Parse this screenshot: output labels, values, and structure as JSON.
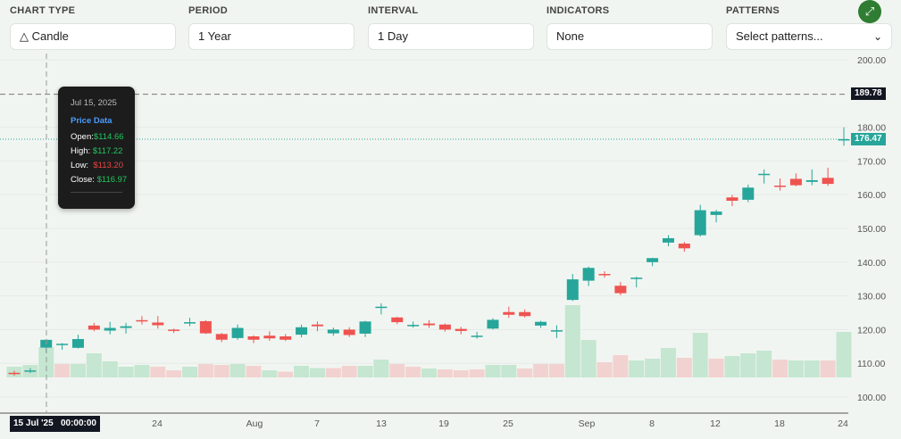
{
  "controls": [
    {
      "label": "CHART TYPE",
      "value": "Candle",
      "icon": "candle-icon"
    },
    {
      "label": "PERIOD",
      "value": "1 Year"
    },
    {
      "label": "INTERVAL",
      "value": "1 Day"
    },
    {
      "label": "INDICATORS",
      "value": "None"
    },
    {
      "label": "PATTERNS",
      "placeholder": "Select patterns...",
      "icon": "chevron-down-icon"
    }
  ],
  "fullscreen_icon": "expand-icon",
  "tooltip": {
    "date": "Jul 15, 2025",
    "section": "Price Data",
    "open_label": "Open:",
    "open": "$114.66",
    "high_label": "High:",
    "high": "$117.22",
    "low_label": "Low:",
    "low": "$113.20",
    "close_label": "Close:",
    "close": "$116.97"
  },
  "crosshair": {
    "price": "189.78",
    "time": "15 Jul '25   00:00:00"
  },
  "last_price": "176.47",
  "colors": {
    "up": "#26a69a",
    "down": "#ef5350",
    "vol_up": "#c5e6d1",
    "vol_down": "#f2d2d0",
    "accent": "#2e7d32"
  },
  "chart_data": {
    "type": "candlestick",
    "ylim": [
      95,
      205
    ],
    "y_ticks": [
      "200.00",
      "180.00",
      "170.00",
      "160.00",
      "150.00",
      "140.00",
      "130.00",
      "120.00",
      "110.00",
      "100.00"
    ],
    "x_ticks": [
      "24",
      "Aug",
      "7",
      "13",
      "19",
      "25",
      "Sep",
      "8",
      "12",
      "18",
      "24"
    ],
    "ohlc": [
      [
        107.2,
        107.8,
        106.3,
        106.8
      ],
      [
        107.6,
        108.6,
        107.1,
        107.9
      ],
      [
        114.66,
        117.22,
        113.2,
        116.97
      ],
      [
        115.5,
        116,
        114,
        115.8
      ],
      [
        114.6,
        118.5,
        114.4,
        117.2
      ],
      [
        121.2,
        122,
        119.5,
        120
      ],
      [
        119.7,
        122.3,
        118.6,
        120.5
      ],
      [
        120.5,
        122,
        118.8,
        121
      ],
      [
        122.8,
        124,
        121.5,
        122.6
      ],
      [
        122.1,
        124,
        120.3,
        121.3
      ],
      [
        120,
        120.3,
        119,
        119.6
      ],
      [
        122,
        123.5,
        121,
        122.2
      ],
      [
        122.5,
        122.8,
        118.7,
        118.9
      ],
      [
        118.7,
        119,
        116.3,
        117
      ],
      [
        117.5,
        121.5,
        117,
        120.5
      ],
      [
        118,
        118.3,
        116,
        117
      ],
      [
        118.2,
        119.5,
        116.7,
        117.4
      ],
      [
        118,
        118.7,
        116.6,
        117
      ],
      [
        118.5,
        121.5,
        117.7,
        120.7
      ],
      [
        121.5,
        122.4,
        119.5,
        121
      ],
      [
        118.9,
        120.6,
        118.2,
        120
      ],
      [
        120,
        120.7,
        117.8,
        118.4
      ],
      [
        118.8,
        122.6,
        117.8,
        122.4
      ],
      [
        126.5,
        127.8,
        124.5,
        126.8
      ],
      [
        123.6,
        123.8,
        121.6,
        122.2
      ],
      [
        121,
        122.4,
        120.6,
        121.4
      ],
      [
        121.8,
        122.8,
        120.5,
        121.3
      ],
      [
        121.5,
        121.8,
        119.4,
        120
      ],
      [
        120.2,
        120.8,
        118.6,
        119.6
      ],
      [
        117.9,
        119.3,
        117.3,
        118.2
      ],
      [
        120.3,
        123.4,
        120,
        122.9
      ],
      [
        125.2,
        126.8,
        123.5,
        124.4
      ],
      [
        125.2,
        126,
        123.6,
        124
      ],
      [
        121.2,
        122.6,
        120.5,
        122.3
      ],
      [
        119.7,
        121.3,
        117.5,
        119.8
      ],
      [
        128.8,
        136.5,
        128.5,
        134.9
      ],
      [
        134.5,
        138.7,
        132.9,
        138.3
      ],
      [
        136.5,
        137.3,
        135.4,
        136.2
      ],
      [
        133,
        134.1,
        130.2,
        130.8
      ],
      [
        135.3,
        135.7,
        132.5,
        135.4
      ],
      [
        140,
        141.3,
        138.8,
        141.2
      ],
      [
        145.8,
        148,
        144.7,
        147.1
      ],
      [
        145.5,
        146,
        143.1,
        144.1
      ],
      [
        148,
        157,
        147.6,
        155.4
      ],
      [
        154,
        155.5,
        151.8,
        155
      ],
      [
        159.2,
        159.9,
        156.6,
        158.2
      ],
      [
        158.5,
        163,
        157.8,
        162.1
      ],
      [
        166,
        167.5,
        163.3,
        166.2
      ],
      [
        162.7,
        164.8,
        161.2,
        162.6
      ],
      [
        164.7,
        166.3,
        162.5,
        162.8
      ],
      [
        163.8,
        167.5,
        162.8,
        164.3
      ],
      [
        165,
        168,
        162.6,
        163.2
      ],
      [
        176.2,
        180,
        174.5,
        176.47
      ]
    ],
    "volume": [
      12,
      14,
      34,
      15,
      15,
      27,
      18,
      12,
      14,
      12,
      8,
      12,
      15,
      14,
      15,
      13,
      8,
      6.5,
      13,
      10.5,
      10.5,
      13,
      13,
      20,
      15,
      12,
      10,
      9,
      8,
      9,
      14,
      14,
      10,
      15,
      15,
      81,
      42,
      17,
      25,
      19,
      21,
      33,
      22,
      50,
      21,
      24,
      27,
      30,
      20,
      19,
      19,
      19,
      51
    ],
    "volume_up": [
      1,
      1,
      1,
      0,
      1,
      1,
      1,
      1,
      1,
      0,
      0,
      1,
      0,
      0,
      1,
      0,
      1,
      0,
      1,
      1,
      0,
      0,
      1,
      1,
      0,
      0,
      1,
      0,
      0,
      0,
      1,
      1,
      0,
      0,
      0,
      1,
      1,
      0,
      0,
      1,
      1,
      1,
      0,
      1,
      0,
      1,
      1,
      1,
      0,
      1,
      1,
      0,
      1
    ]
  }
}
